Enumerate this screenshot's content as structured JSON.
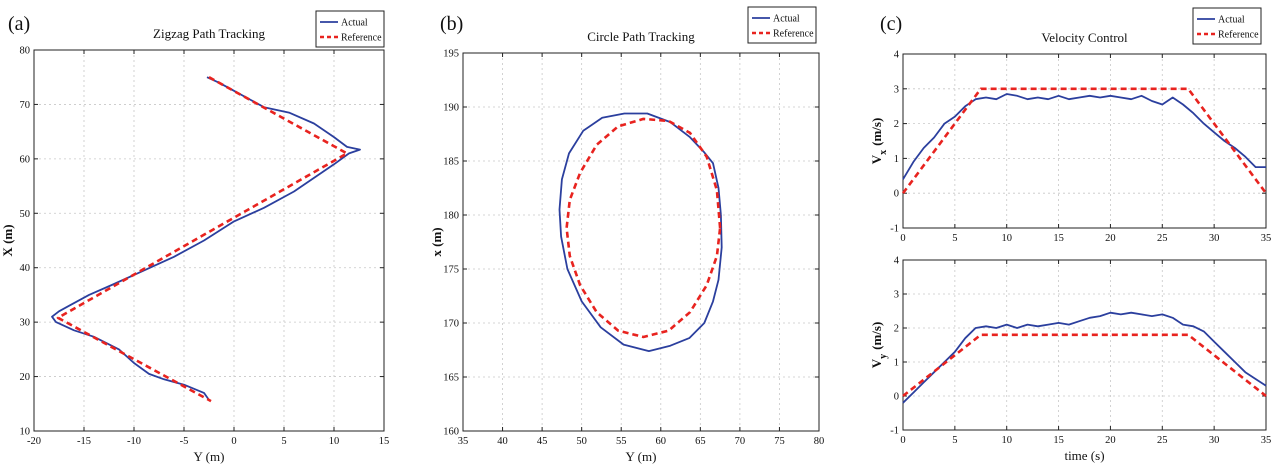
{
  "chart_data": [
    {
      "id": "a",
      "type": "line",
      "panel_label": "(a)",
      "title": "Zigzag Path Tracking",
      "xlabel": "Y (m)",
      "ylabel": "X (m)",
      "xlim": [
        -20,
        15
      ],
      "ylim": [
        10,
        80
      ],
      "xticks": [
        -20,
        -15,
        -10,
        -5,
        0,
        5,
        10,
        15
      ],
      "yticks": [
        10,
        20,
        30,
        40,
        50,
        60,
        70,
        80
      ],
      "grid": true,
      "legend": "top-right",
      "series": [
        {
          "name": "Actual",
          "color": "#2b3f9e",
          "style": "solid",
          "x": [
            -2.7,
            -1.5,
            0,
            1.5,
            3,
            5.5,
            8,
            10,
            11.3,
            12.6,
            11.5,
            10,
            8,
            6,
            3,
            0,
            -3,
            -6,
            -9,
            -12,
            -14.5,
            -16.5,
            -17.5,
            -18.2,
            -17.8,
            -16,
            -14,
            -11.5,
            -10,
            -8.5,
            -7,
            -5,
            -3,
            -2.5
          ],
          "y": [
            75,
            74,
            72.5,
            71,
            69.5,
            68.5,
            66.5,
            64,
            62.2,
            61.7,
            61,
            59,
            56.5,
            54,
            51,
            48.5,
            45,
            42,
            39.5,
            37,
            35,
            33,
            32,
            31,
            30,
            28.5,
            27.3,
            25,
            22.5,
            20.5,
            19.5,
            18.5,
            17,
            15.7
          ]
        },
        {
          "name": "Reference",
          "color": "#e8231f",
          "style": "dashed",
          "x": [
            -2.5,
            11.3,
            -17.6,
            -2.3
          ],
          "y": [
            75,
            61,
            30.8,
            15.5
          ]
        }
      ]
    },
    {
      "id": "b",
      "type": "line",
      "panel_label": "(b)",
      "title": "Circle Path Tracking",
      "xlabel": "Y (m)",
      "ylabel": "x (m)",
      "xlim": [
        35,
        80
      ],
      "ylim": [
        160,
        195
      ],
      "xticks": [
        35,
        40,
        45,
        50,
        55,
        60,
        65,
        70,
        75,
        80
      ],
      "yticks": [
        160,
        165,
        170,
        175,
        180,
        185,
        190,
        195
      ],
      "grid": true,
      "legend": "top-right",
      "series": [
        {
          "name": "Actual",
          "color": "#2b3f9e",
          "style": "solid",
          "x": [
            67.6,
            67.7,
            67.3,
            66.6,
            65.5,
            63.6,
            61.2,
            58.5,
            55.3,
            52.4,
            50,
            48.2,
            47.4,
            47.2,
            47.5,
            48.4,
            50.2,
            52.6,
            55.4,
            58.3,
            61.2,
            63.7,
            65.5,
            66.6,
            67.3,
            67.6
          ],
          "y": [
            180,
            177,
            174,
            172,
            170,
            168.6,
            167.9,
            167.4,
            168,
            169.6,
            172,
            175,
            178,
            180.5,
            183.3,
            185.7,
            187.8,
            189,
            189.4,
            189.4,
            188.6,
            187.2,
            185.8,
            184.8,
            182.5,
            180
          ]
        },
        {
          "name": "Reference",
          "color": "#e8231f",
          "style": "dashed",
          "x": [
            67.5,
            67.1,
            65.8,
            63.7,
            61,
            57.8,
            54.6,
            51.9,
            49.8,
            48.5,
            48.1,
            48.5,
            49.8,
            51.9,
            54.6,
            57.8,
            61,
            63.7,
            65.8,
            67.1,
            67.5
          ],
          "y": [
            178.8,
            182.3,
            185.4,
            187.6,
            188.7,
            188.9,
            188.2,
            186.5,
            183.9,
            181.4,
            178.8,
            176.2,
            173.5,
            171,
            169.3,
            168.7,
            169.3,
            171,
            173.5,
            176.2,
            178.8
          ]
        }
      ]
    },
    {
      "id": "c1",
      "type": "line",
      "panel_label": "(c)",
      "title": "Velocity Control",
      "xlabel": "",
      "ylabel": "V",
      "ylabel_sub": "x",
      "ylabel_unit": "(m/s)",
      "xlim": [
        0,
        35
      ],
      "ylim": [
        -1,
        4
      ],
      "xticks": [
        0,
        5,
        10,
        15,
        20,
        25,
        30,
        35
      ],
      "yticks": [
        -1,
        0,
        1,
        2,
        3,
        4
      ],
      "grid": true,
      "legend": "top-right",
      "series": [
        {
          "name": "Actual",
          "color": "#2b3f9e",
          "style": "solid",
          "x": [
            0,
            1,
            2,
            3,
            4,
            5,
            6,
            7,
            8,
            9,
            10,
            11,
            12,
            13,
            14,
            15,
            16,
            17,
            18,
            19,
            20,
            21,
            22,
            23,
            24,
            25,
            26,
            27,
            28,
            29,
            30,
            31,
            32,
            33,
            34,
            35
          ],
          "y": [
            0.4,
            0.9,
            1.3,
            1.6,
            2.0,
            2.2,
            2.5,
            2.7,
            2.75,
            2.7,
            2.85,
            2.8,
            2.7,
            2.75,
            2.7,
            2.8,
            2.7,
            2.75,
            2.8,
            2.75,
            2.8,
            2.75,
            2.7,
            2.8,
            2.65,
            2.55,
            2.75,
            2.55,
            2.3,
            2.0,
            1.75,
            1.5,
            1.3,
            1.05,
            0.75,
            0.75
          ]
        },
        {
          "name": "Reference",
          "color": "#e8231f",
          "style": "dashed",
          "x": [
            0,
            7.5,
            27.5,
            35
          ],
          "y": [
            0,
            3,
            3,
            0
          ]
        }
      ]
    },
    {
      "id": "c2",
      "type": "line",
      "title": "",
      "xlabel": "time (s)",
      "ylabel": "V",
      "ylabel_sub": "y",
      "ylabel_unit": "(m/s)",
      "xlim": [
        0,
        35
      ],
      "ylim": [
        -1,
        4
      ],
      "xticks": [
        0,
        5,
        10,
        15,
        20,
        25,
        30,
        35
      ],
      "yticks": [
        -1,
        0,
        1,
        2,
        3,
        4
      ],
      "grid": true,
      "series": [
        {
          "name": "Actual",
          "color": "#2b3f9e",
          "style": "solid",
          "x": [
            0,
            1,
            2,
            3,
            4,
            5,
            6,
            7,
            8,
            9,
            10,
            11,
            12,
            13,
            14,
            15,
            16,
            17,
            18,
            19,
            20,
            21,
            22,
            23,
            24,
            25,
            26,
            27,
            28,
            29,
            30,
            31,
            32,
            33,
            34,
            35
          ],
          "y": [
            -0.2,
            0.1,
            0.4,
            0.7,
            1.0,
            1.3,
            1.7,
            2.0,
            2.05,
            2.0,
            2.1,
            2.0,
            2.1,
            2.05,
            2.1,
            2.15,
            2.1,
            2.2,
            2.3,
            2.35,
            2.45,
            2.4,
            2.45,
            2.4,
            2.35,
            2.4,
            2.3,
            2.1,
            2.05,
            1.9,
            1.6,
            1.3,
            1.0,
            0.7,
            0.5,
            0.3
          ]
        },
        {
          "name": "Reference",
          "color": "#e8231f",
          "style": "dashed",
          "x": [
            0,
            7.5,
            27.5,
            35
          ],
          "y": [
            0,
            1.8,
            1.8,
            0
          ]
        }
      ]
    }
  ]
}
